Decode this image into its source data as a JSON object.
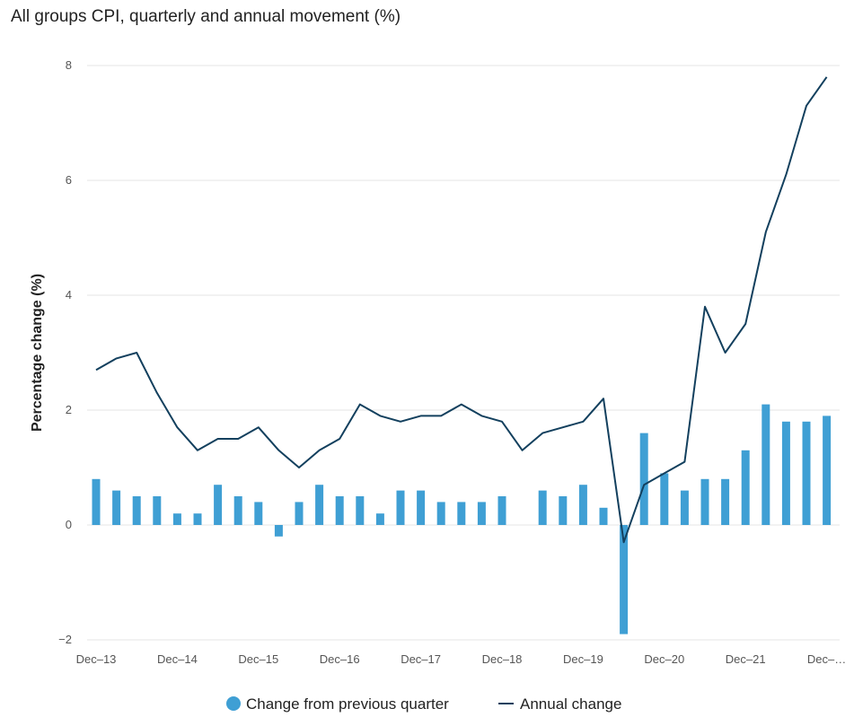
{
  "chart_data": {
    "type": "bar",
    "title": "All groups CPI, quarterly and annual movement (%)",
    "ylabel": "Percentage change (%)",
    "xlabel": "",
    "ylim": [
      -2,
      8
    ],
    "yticks": [
      -2,
      0,
      2,
      4,
      6,
      8
    ],
    "grid": true,
    "legend_position": "bottom",
    "categories": [
      "Dec-13",
      "Mar-14",
      "Jun-14",
      "Sep-14",
      "Dec-14",
      "Mar-15",
      "Jun-15",
      "Sep-15",
      "Dec-15",
      "Mar-16",
      "Jun-16",
      "Sep-16",
      "Dec-16",
      "Mar-17",
      "Jun-17",
      "Sep-17",
      "Dec-17",
      "Mar-18",
      "Jun-18",
      "Sep-18",
      "Dec-18",
      "Mar-19",
      "Jun-19",
      "Sep-19",
      "Dec-19",
      "Mar-20",
      "Jun-20",
      "Sep-20",
      "Dec-20",
      "Mar-21",
      "Jun-21",
      "Sep-21",
      "Dec-21",
      "Mar-22",
      "Jun-22",
      "Sep-22",
      "Dec-22"
    ],
    "x_tick_labels": [
      "Dec–13",
      "Dec–14",
      "Dec–15",
      "Dec–16",
      "Dec–17",
      "Dec–18",
      "Dec–19",
      "Dec–20",
      "Dec–21",
      "Dec–…"
    ],
    "series": [
      {
        "name": "Change from previous quarter",
        "type": "bar",
        "color": "#3f9fd4",
        "values": [
          0.8,
          0.6,
          0.5,
          0.5,
          0.2,
          0.2,
          0.7,
          0.5,
          0.4,
          -0.2,
          0.4,
          0.7,
          0.5,
          0.5,
          0.2,
          0.6,
          0.6,
          0.4,
          0.4,
          0.4,
          0.5,
          0.0,
          0.6,
          0.5,
          0.7,
          0.3,
          -1.9,
          1.6,
          0.9,
          0.6,
          0.8,
          0.8,
          1.3,
          2.1,
          1.8,
          1.8,
          1.9
        ]
      },
      {
        "name": "Annual change",
        "type": "line",
        "color": "#13405e",
        "values": [
          2.7,
          2.9,
          3.0,
          2.3,
          1.7,
          1.3,
          1.5,
          1.5,
          1.7,
          1.3,
          1.0,
          1.3,
          1.5,
          2.1,
          1.9,
          1.8,
          1.9,
          1.9,
          2.1,
          1.9,
          1.8,
          1.3,
          1.6,
          1.7,
          1.8,
          2.2,
          -0.3,
          0.7,
          0.9,
          1.1,
          3.8,
          3.0,
          3.5,
          5.1,
          6.1,
          7.3,
          7.8
        ]
      }
    ]
  }
}
